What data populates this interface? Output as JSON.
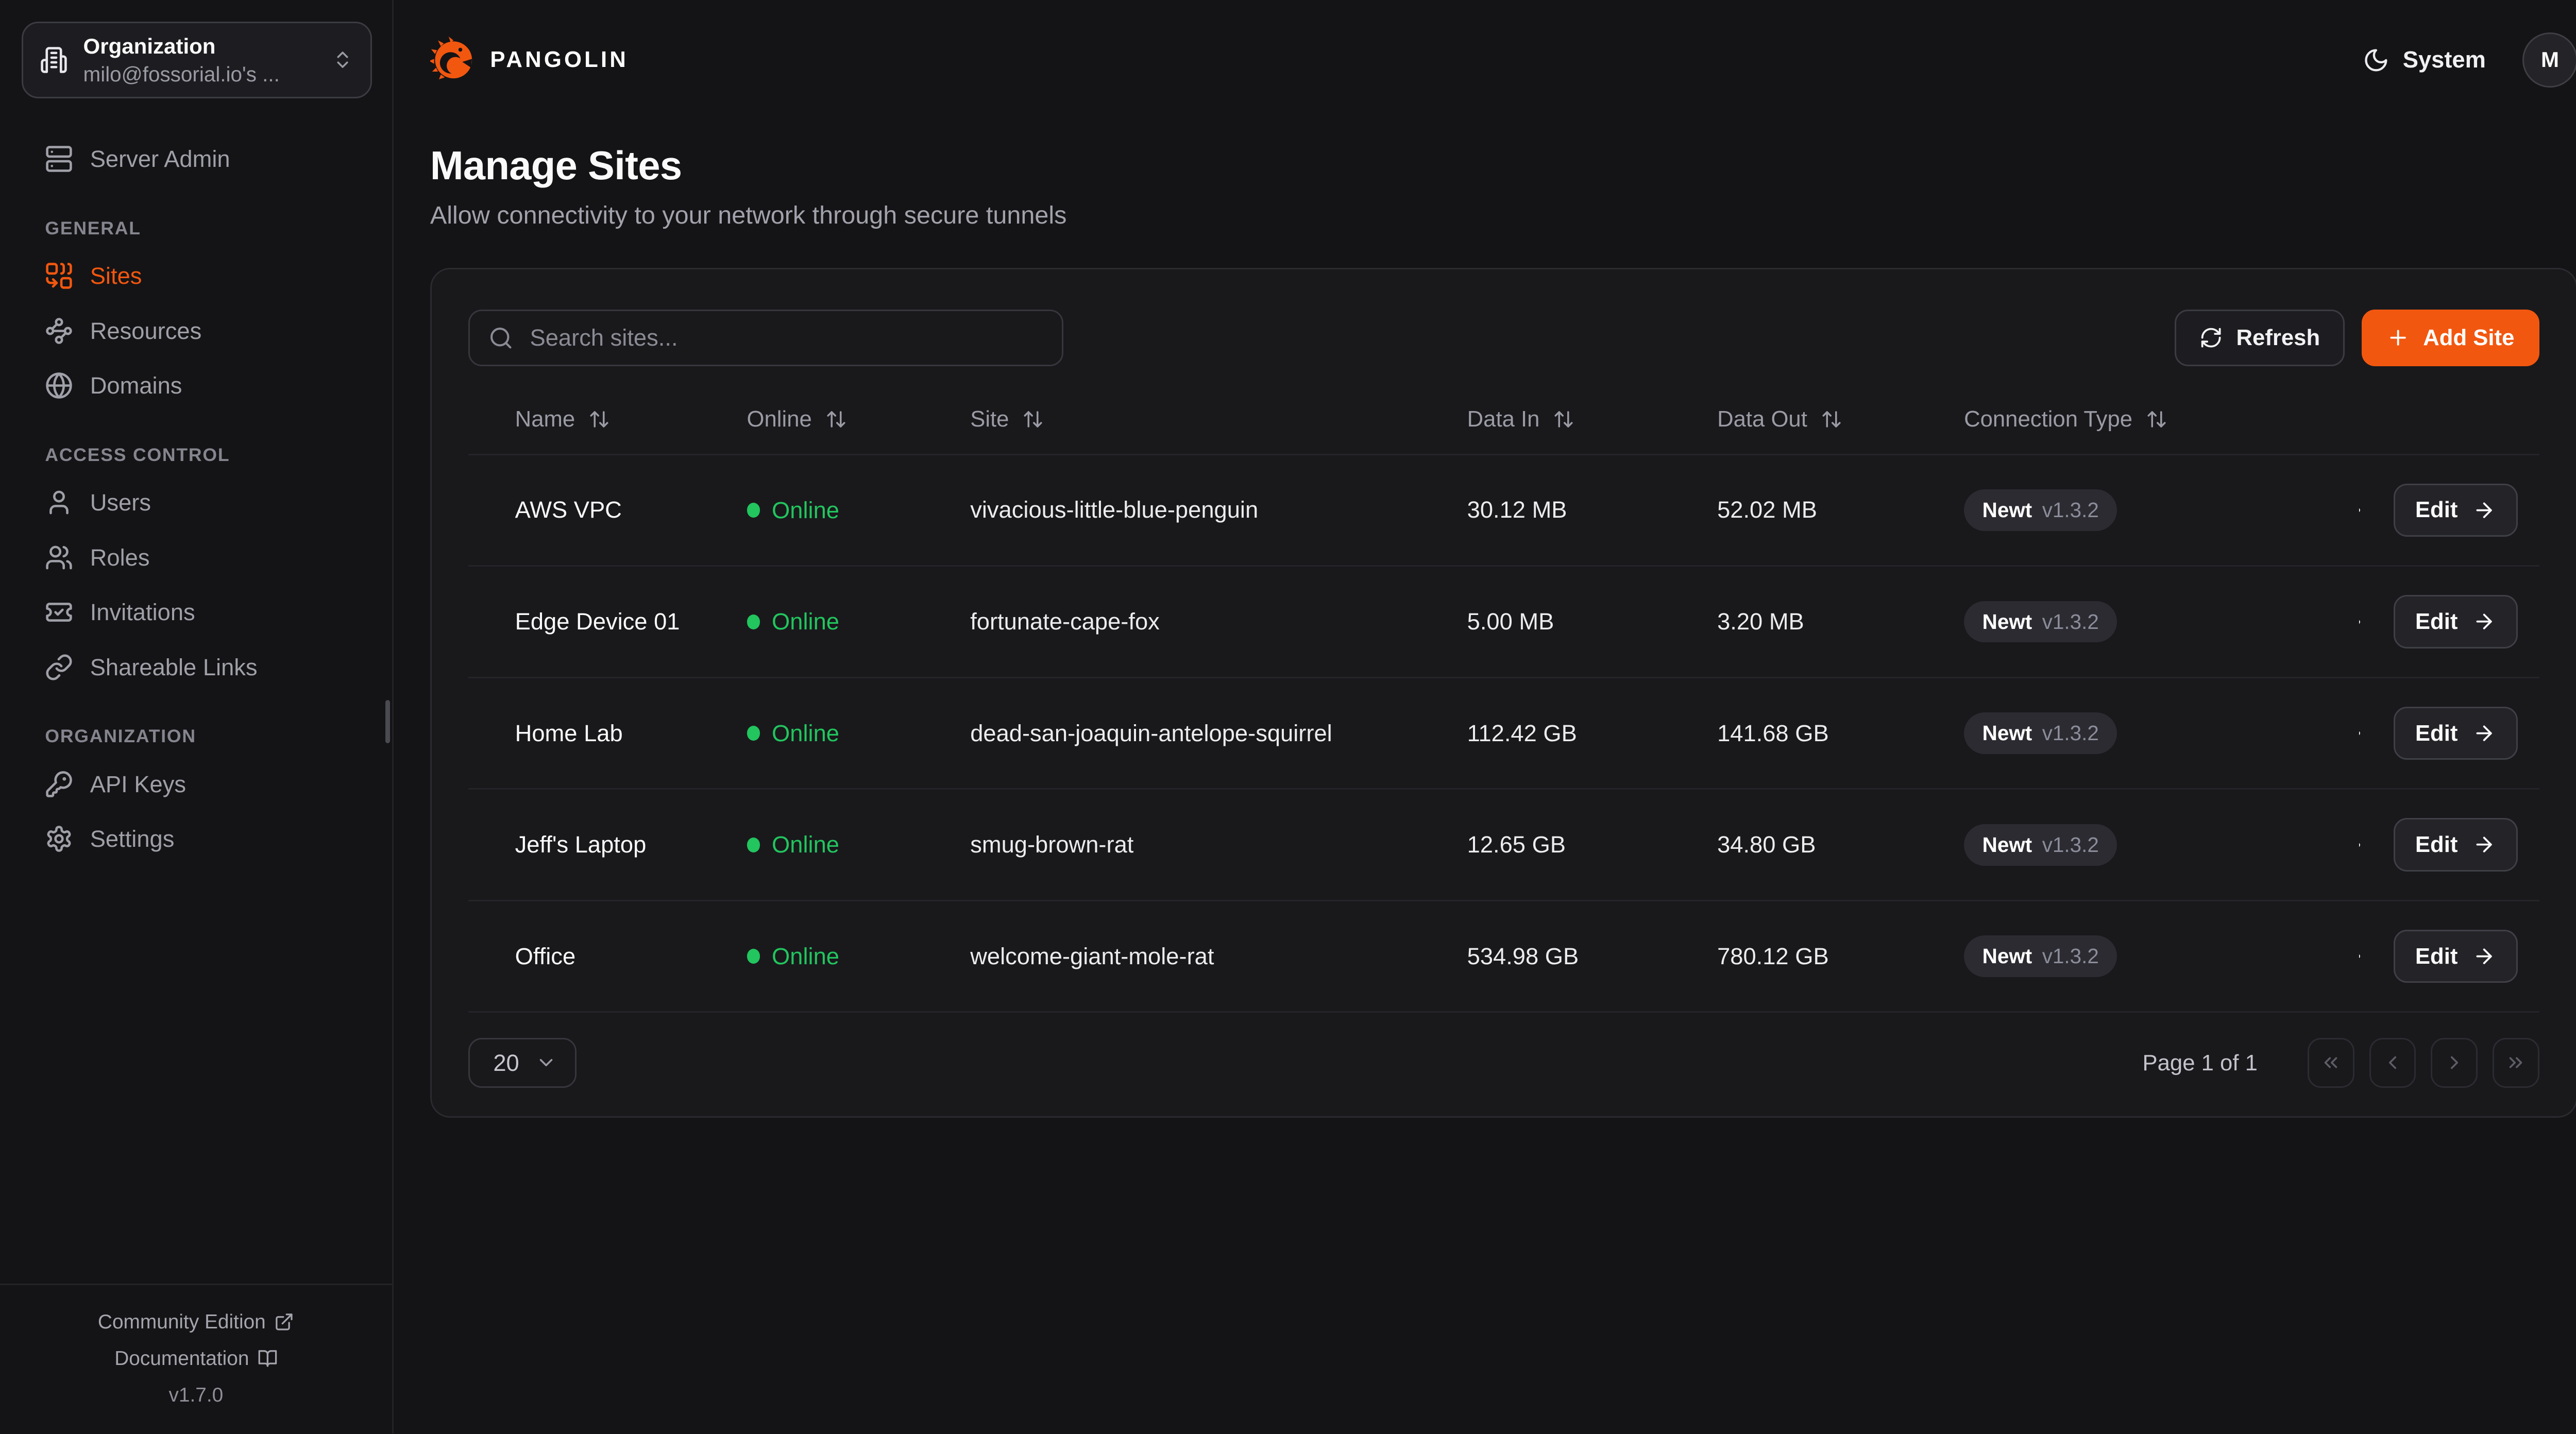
{
  "header": {
    "brand": "PANGOLIN",
    "theme": {
      "label": "System",
      "icon": "moon"
    },
    "avatar": {
      "initial": "M"
    }
  },
  "org_selector": {
    "title": "Organization",
    "subtitle": "milo@fossorial.io's ...",
    "icon": "building",
    "chevron_icon": "chevrons-up-down"
  },
  "sidebar": {
    "server_admin": {
      "label": "Server Admin",
      "icon": "server"
    },
    "sections": [
      {
        "heading": "GENERAL",
        "items": [
          {
            "label": "Sites",
            "icon": "combine",
            "active": true
          },
          {
            "label": "Resources",
            "icon": "waypoints",
            "active": false
          },
          {
            "label": "Domains",
            "icon": "globe",
            "active": false
          }
        ]
      },
      {
        "heading": "ACCESS CONTROL",
        "items": [
          {
            "label": "Users",
            "icon": "user",
            "active": false
          },
          {
            "label": "Roles",
            "icon": "users",
            "active": false
          },
          {
            "label": "Invitations",
            "icon": "ticket-check",
            "active": false
          },
          {
            "label": "Shareable Links",
            "icon": "link",
            "active": false
          }
        ]
      },
      {
        "heading": "ORGANIZATION",
        "items": [
          {
            "label": "API Keys",
            "icon": "key-round",
            "active": false
          },
          {
            "label": "Settings",
            "icon": "settings",
            "active": false
          }
        ]
      }
    ],
    "footer": {
      "links": [
        {
          "label": "Community Edition",
          "icon": "external-link"
        },
        {
          "label": "Documentation",
          "icon": "book-open"
        }
      ],
      "version": "v1.7.0"
    }
  },
  "page": {
    "title": "Manage Sites",
    "subtitle": "Allow connectivity to your network through secure tunnels"
  },
  "toolbar": {
    "search_placeholder": "Search sites...",
    "search_icon": "search",
    "refresh": "Refresh",
    "refresh_icon": "refresh-cw",
    "add_site": "Add Site",
    "add_icon": "plus"
  },
  "table": {
    "columns": [
      {
        "label": "Name"
      },
      {
        "label": "Online"
      },
      {
        "label": "Site"
      },
      {
        "label": "Data In"
      },
      {
        "label": "Data Out"
      },
      {
        "label": "Connection Type"
      }
    ],
    "rows": [
      {
        "name": "AWS VPC",
        "status": "Online",
        "site": "vivacious-little-blue-penguin",
        "data_in": "30.12 MB",
        "data_out": "52.02 MB",
        "connection_type": "Newt",
        "connection_version": "v1.3.2",
        "edit": "Edit"
      },
      {
        "name": "Edge Device 01",
        "status": "Online",
        "site": "fortunate-cape-fox",
        "data_in": "5.00 MB",
        "data_out": "3.20 MB",
        "connection_type": "Newt",
        "connection_version": "v1.3.2",
        "edit": "Edit"
      },
      {
        "name": "Home Lab",
        "status": "Online",
        "site": "dead-san-joaquin-antelope-squirrel",
        "data_in": "112.42 GB",
        "data_out": "141.68 GB",
        "connection_type": "Newt",
        "connection_version": "v1.3.2",
        "edit": "Edit"
      },
      {
        "name": "Jeff's Laptop",
        "status": "Online",
        "site": "smug-brown-rat",
        "data_in": "12.65 GB",
        "data_out": "34.80 GB",
        "connection_type": "Newt",
        "connection_version": "v1.3.2",
        "edit": "Edit"
      },
      {
        "name": "Office",
        "status": "Online",
        "site": "welcome-giant-mole-rat",
        "data_in": "534.98 GB",
        "data_out": "780.12 GB",
        "connection_type": "Newt",
        "connection_version": "v1.3.2",
        "edit": "Edit"
      }
    ]
  },
  "pagination": {
    "page_size": "20",
    "status": "Page 1 of 1",
    "buttons": [
      {
        "name": "first",
        "icon": "chevrons-left"
      },
      {
        "name": "previous",
        "icon": "chevron-left"
      },
      {
        "name": "next",
        "icon": "chevron-right"
      },
      {
        "name": "last",
        "icon": "chevrons-right"
      }
    ]
  },
  "colors": {
    "accent": "#f2570f",
    "online": "#22c55e",
    "background": "#141416",
    "card": "#19191c"
  }
}
